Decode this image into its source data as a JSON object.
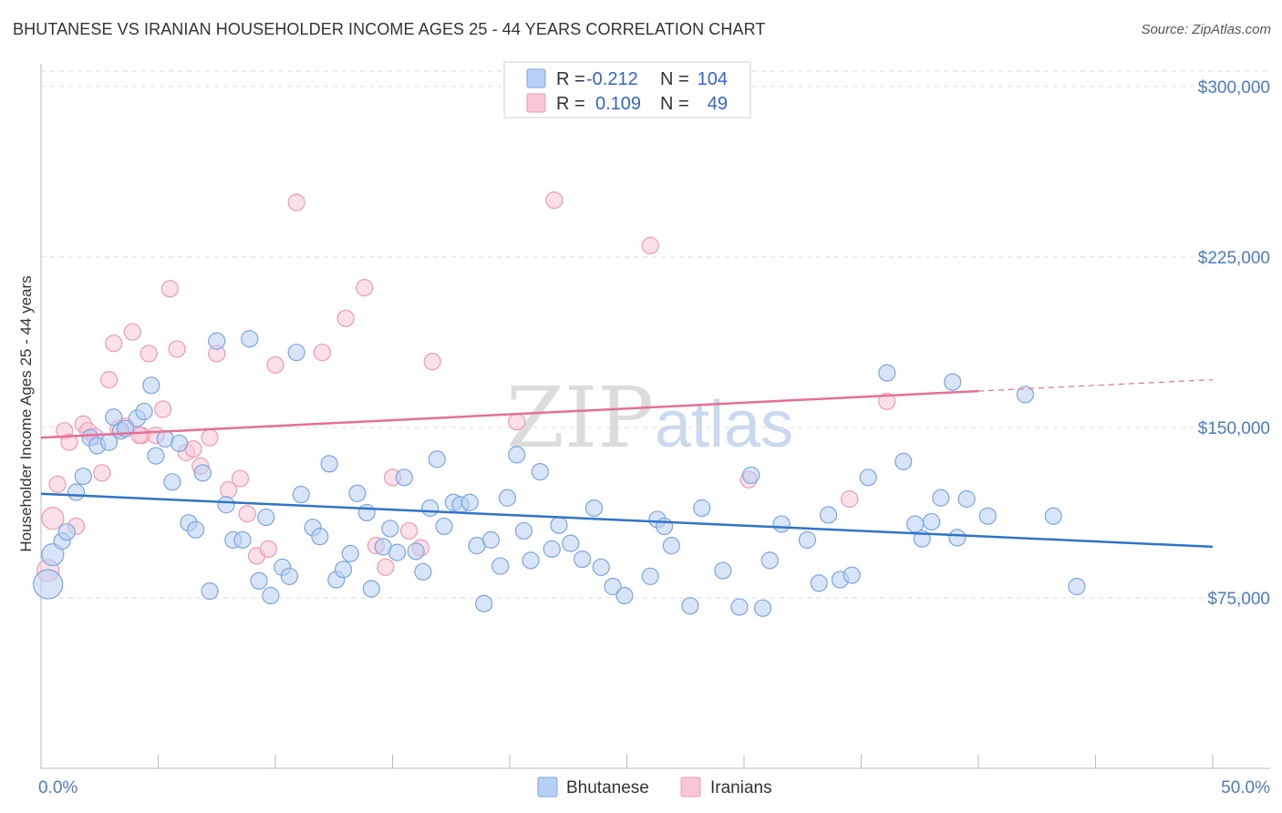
{
  "title": "BHUTANESE VS IRANIAN HOUSEHOLDER INCOME AGES 25 - 44 YEARS CORRELATION CHART",
  "source": "Source: ZipAtlas.com",
  "watermark": {
    "zip": "ZIP",
    "atlas": "atlas"
  },
  "legend": {
    "r_label": "R =",
    "n_label": "N =",
    "rows": [
      {
        "name": "Bhutanese",
        "r": "-0.212",
        "n": "104",
        "fill": "#b8d0f4",
        "stroke": "#7aa6e0"
      },
      {
        "name": "Iranians",
        "r": "0.109",
        "n": "49",
        "fill": "#f8c6d6",
        "stroke": "#ee9ab6"
      }
    ]
  },
  "colors": {
    "blue_line": "#2f74c9",
    "pink_line": "#e56f97",
    "axis_text": "#4a7bc8",
    "grid": "#dddddd"
  },
  "chart_data": {
    "type": "scatter",
    "title": "BHUTANESE VS IRANIAN HOUSEHOLDER INCOME AGES 25 - 44 YEARS CORRELATION CHART",
    "xlabel": "",
    "ylabel": "Householder Income Ages 25 - 44 years",
    "xlim": [
      0,
      50
    ],
    "ylim": [
      0,
      310000
    ],
    "x_tick_labels": [
      "0.0%",
      "50.0%"
    ],
    "y_ticks": [
      75000,
      150000,
      225000,
      300000
    ],
    "y_tick_labels": [
      "$75,000",
      "$150,000",
      "$225,000",
      "$300,000"
    ],
    "series": [
      {
        "name": "Bhutanese",
        "trend": {
          "x0": 0,
          "y0": 120800,
          "x1": 50,
          "y1": 97500
        },
        "points": [
          [
            0.3,
            81000
          ],
          [
            0.5,
            94000
          ],
          [
            0.9,
            100000
          ],
          [
            1.1,
            104000
          ],
          [
            1.5,
            121500
          ],
          [
            1.8,
            128500
          ],
          [
            2.1,
            145500
          ],
          [
            2.4,
            142000
          ],
          [
            2.9,
            143500
          ],
          [
            3.1,
            154500
          ],
          [
            3.4,
            148500
          ],
          [
            3.6,
            149500
          ],
          [
            4.1,
            154000
          ],
          [
            4.4,
            157000
          ],
          [
            4.7,
            168500
          ],
          [
            4.9,
            137500
          ],
          [
            5.3,
            145000
          ],
          [
            5.6,
            126000
          ],
          [
            5.9,
            143000
          ],
          [
            6.3,
            108000
          ],
          [
            6.6,
            105000
          ],
          [
            6.9,
            130000
          ],
          [
            7.2,
            78000
          ],
          [
            7.5,
            188000
          ],
          [
            7.9,
            116000
          ],
          [
            8.2,
            100500
          ],
          [
            8.6,
            100500
          ],
          [
            8.9,
            189000
          ],
          [
            9.3,
            82500
          ],
          [
            9.6,
            110500
          ],
          [
            9.8,
            76000
          ],
          [
            10.3,
            88500
          ],
          [
            10.6,
            84500
          ],
          [
            10.9,
            183000
          ],
          [
            11.1,
            120500
          ],
          [
            11.6,
            106000
          ],
          [
            11.9,
            102000
          ],
          [
            12.3,
            134000
          ],
          [
            12.6,
            83000
          ],
          [
            12.9,
            87500
          ],
          [
            13.2,
            94500
          ],
          [
            13.5,
            121000
          ],
          [
            13.9,
            112500
          ],
          [
            14.1,
            79000
          ],
          [
            14.6,
            97500
          ],
          [
            14.9,
            105500
          ],
          [
            15.2,
            95000
          ],
          [
            15.5,
            128000
          ],
          [
            16.0,
            95500
          ],
          [
            16.3,
            86500
          ],
          [
            16.6,
            114500
          ],
          [
            16.9,
            136000
          ],
          [
            17.2,
            106500
          ],
          [
            17.6,
            117000
          ],
          [
            17.9,
            116000
          ],
          [
            18.3,
            117000
          ],
          [
            18.6,
            98000
          ],
          [
            18.9,
            72500
          ],
          [
            19.2,
            100500
          ],
          [
            19.6,
            89000
          ],
          [
            19.9,
            119000
          ],
          [
            20.3,
            138000
          ],
          [
            20.6,
            104500
          ],
          [
            20.9,
            91500
          ],
          [
            21.3,
            130500
          ],
          [
            21.8,
            96500
          ],
          [
            22.1,
            107000
          ],
          [
            22.6,
            99000
          ],
          [
            23.1,
            92000
          ],
          [
            23.6,
            114500
          ],
          [
            23.9,
            88500
          ],
          [
            24.4,
            80000
          ],
          [
            24.9,
            76000
          ],
          [
            26.0,
            84500
          ],
          [
            26.3,
            109500
          ],
          [
            26.6,
            106500
          ],
          [
            26.9,
            98000
          ],
          [
            27.7,
            71500
          ],
          [
            28.2,
            114500
          ],
          [
            29.1,
            87000
          ],
          [
            29.8,
            71000
          ],
          [
            30.3,
            129000
          ],
          [
            30.8,
            70500
          ],
          [
            31.1,
            91500
          ],
          [
            31.6,
            107500
          ],
          [
            32.7,
            100500
          ],
          [
            33.2,
            81500
          ],
          [
            33.6,
            111500
          ],
          [
            34.1,
            83000
          ],
          [
            34.6,
            85000
          ],
          [
            35.3,
            128000
          ],
          [
            36.1,
            174000
          ],
          [
            36.8,
            135000
          ],
          [
            37.3,
            107500
          ],
          [
            37.6,
            101000
          ],
          [
            38.0,
            108500
          ],
          [
            38.4,
            119000
          ],
          [
            39.1,
            101500
          ],
          [
            38.9,
            170000
          ],
          [
            39.5,
            118500
          ],
          [
            40.4,
            111000
          ],
          [
            42.0,
            164500
          ],
          [
            43.2,
            111000
          ],
          [
            44.2,
            80000
          ]
        ]
      },
      {
        "name": "Iranians",
        "trend": {
          "x0": 0,
          "y0": 145500,
          "x1": 40,
          "y1": 166000
        },
        "trend_dashed_to": {
          "x": 50,
          "y": 171000
        },
        "points": [
          [
            0.3,
            87000
          ],
          [
            0.5,
            110000
          ],
          [
            0.7,
            125000
          ],
          [
            1.0,
            148500
          ],
          [
            1.2,
            143500
          ],
          [
            1.5,
            106500
          ],
          [
            1.8,
            151500
          ],
          [
            2.0,
            148500
          ],
          [
            2.3,
            146000
          ],
          [
            2.6,
            130000
          ],
          [
            2.9,
            171000
          ],
          [
            3.1,
            187000
          ],
          [
            3.3,
            149500
          ],
          [
            3.6,
            150500
          ],
          [
            3.9,
            192000
          ],
          [
            4.3,
            146500
          ],
          [
            4.6,
            182500
          ],
          [
            4.9,
            146500
          ],
          [
            5.2,
            158000
          ],
          [
            5.5,
            211000
          ],
          [
            5.8,
            184500
          ],
          [
            6.2,
            139000
          ],
          [
            6.5,
            140500
          ],
          [
            6.8,
            133000
          ],
          [
            7.2,
            145500
          ],
          [
            7.5,
            182500
          ],
          [
            8.0,
            122500
          ],
          [
            8.5,
            127500
          ],
          [
            8.8,
            112000
          ],
          [
            9.2,
            93500
          ],
          [
            9.7,
            96500
          ],
          [
            10.0,
            177500
          ],
          [
            10.9,
            249000
          ],
          [
            12.0,
            183000
          ],
          [
            13.0,
            198000
          ],
          [
            13.8,
            211500
          ],
          [
            14.3,
            98000
          ],
          [
            14.7,
            88500
          ],
          [
            15.0,
            128000
          ],
          [
            15.7,
            104500
          ],
          [
            16.2,
            97000
          ],
          [
            16.7,
            179000
          ],
          [
            20.3,
            152500
          ],
          [
            21.9,
            250000
          ],
          [
            26.0,
            230000
          ],
          [
            30.2,
            127000
          ],
          [
            34.5,
            118500
          ],
          [
            36.1,
            161500
          ],
          [
            4.2,
            146500
          ]
        ]
      }
    ],
    "legend_position": "top-center"
  }
}
